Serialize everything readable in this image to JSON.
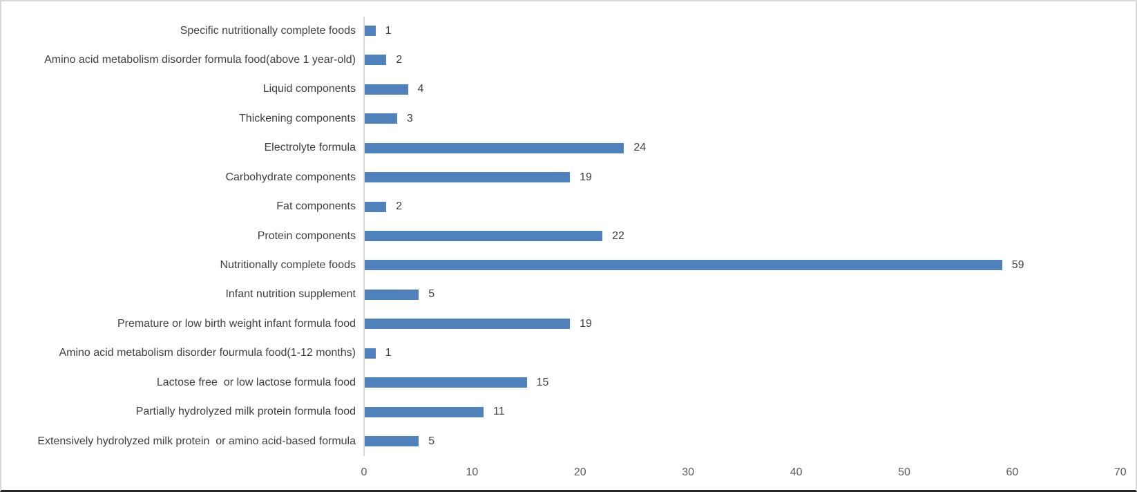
{
  "chart_data": {
    "type": "bar",
    "orientation": "horizontal",
    "title": "",
    "xlabel": "",
    "ylabel": "",
    "xlim": [
      0,
      70
    ],
    "xticks": [
      0,
      10,
      20,
      30,
      40,
      50,
      60,
      70
    ],
    "grid": false,
    "legend": null,
    "data_labels": true,
    "bar_color": "#4F81BD",
    "categories": [
      "Specific nutritionally complete foods",
      "Amino acid metabolism disorder formula food(above 1 year-old)",
      "Liquid components",
      "Thickening components",
      "Electrolyte formula",
      "Carbohydrate components",
      "Fat components",
      "Protein components",
      "Nutritionally complete foods",
      "Infant nutrition supplement",
      "Premature or low birth weight infant formula food",
      "Amino acid metabolism disorder fourmula food(1-12 months)",
      "Lactose free  or low lactose formula food",
      "Partially hydrolyzed milk protein formula food",
      "Extensively hydrolyzed milk protein  or amino acid-based formula"
    ],
    "values": [
      1,
      2,
      4,
      3,
      24,
      19,
      2,
      22,
      59,
      5,
      19,
      1,
      15,
      11,
      5
    ]
  },
  "axis": {
    "tick_labels": [
      "0",
      "10",
      "20",
      "30",
      "40",
      "50",
      "60",
      "70"
    ]
  }
}
